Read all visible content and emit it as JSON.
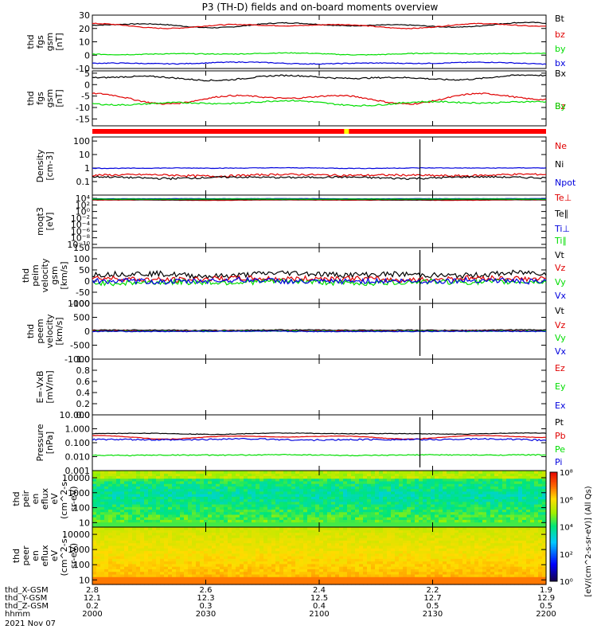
{
  "title": "P3 (TH-D) fields and on-board moments overview",
  "colors": {
    "black": "#000000",
    "red": "#e00000",
    "green": "#00dd00",
    "blue": "#0000dd",
    "yellow": "#ffff00",
    "status_red": "#ff0000"
  },
  "chart_data": [
    {
      "type": "line",
      "id": "fgs_gsm",
      "ylabel_lines": [
        "thd",
        "fgs",
        "gsm",
        "[nT]"
      ],
      "ylim": [
        -10,
        30
      ],
      "yticks": [
        -10,
        0,
        10,
        20,
        30
      ],
      "series": [
        {
          "name": "Bt",
          "color": "#000000",
          "base": 22.5,
          "amp": 2,
          "noise": 0.3
        },
        {
          "name": "bz",
          "color": "#e00000",
          "base": 22,
          "amp": 2,
          "noise": 0.3
        },
        {
          "name": "by",
          "color": "#00dd00",
          "base": 1,
          "amp": 0.8,
          "noise": 0.3
        },
        {
          "name": "bx",
          "color": "#0000dd",
          "base": -6,
          "amp": 0.8,
          "noise": 0.3
        }
      ]
    },
    {
      "type": "line",
      "id": "fgs_gsm2",
      "ylabel_lines": [
        "thd",
        "fgs",
        "gsm",
        "[nT]"
      ],
      "ylim": [
        -18,
        6
      ],
      "yticks": [
        -15,
        -10,
        -5,
        0,
        5
      ],
      "series": [
        {
          "name": "Bx",
          "color": "#000000",
          "base": 3,
          "amp": 1.2,
          "noise": 0.3
        },
        {
          "name": "Bz",
          "color": "#e00000",
          "base": -6,
          "amp": 2.5,
          "noise": 0.3
        },
        {
          "name": "By",
          "color": "#00dd00",
          "base": -8,
          "amp": 1.2,
          "noise": 0.3
        }
      ]
    },
    {
      "type": "line",
      "id": "density",
      "scale": "log",
      "ylabel_lines": [
        "Density",
        "[cm-3]"
      ],
      "ylim": [
        0.01,
        200
      ],
      "yticks": [
        0.1,
        1,
        10,
        100
      ],
      "ytick_labels": [
        "0.1",
        "1",
        "10",
        "100"
      ],
      "series": [
        {
          "name": "Ne",
          "color": "#e00000",
          "base": 0.3,
          "amp": 0.05,
          "noise": 0.05
        },
        {
          "name": "Ni",
          "color": "#000000",
          "base": 0.2,
          "amp": 0.03,
          "noise": 0.03
        },
        {
          "name": "Npot",
          "color": "#0000dd",
          "base": 1.0,
          "amp": 0.05,
          "noise": 0.05
        }
      ]
    },
    {
      "type": "line",
      "id": "temperature",
      "scale": "log",
      "ylabel_lines": [
        "moqt3",
        "[eV]"
      ],
      "ylim": [
        1e-11,
        100000.0
      ],
      "yticks": [
        1e-10,
        1e-08,
        1e-06,
        0.0001,
        0.01,
        1,
        100,
        10000
      ],
      "ytick_labels": [
        "10⁻¹⁰",
        "10⁻⁸",
        "10⁻⁶",
        "10⁻⁴",
        "10⁻²",
        "10⁰",
        "10²",
        "10⁴"
      ],
      "series": [
        {
          "name": "Te⊥",
          "color": "#e00000",
          "base": 3000,
          "amp": 500,
          "noise": 300
        },
        {
          "name": "Te∥",
          "color": "#000000",
          "base": 4000,
          "amp": 500,
          "noise": 300
        },
        {
          "name": "Ti⊥",
          "color": "#0000dd",
          "base": 8000,
          "amp": 500,
          "noise": 500
        },
        {
          "name": "Ti∥",
          "color": "#00dd00",
          "base": 6000,
          "amp": 500,
          "noise": 500
        }
      ]
    },
    {
      "type": "line",
      "id": "peim_velocity",
      "ylabel_lines": [
        "thd",
        "peim",
        "velocity",
        "gsm",
        "[km/s]"
      ],
      "ylim": [
        -100,
        150
      ],
      "yticks": [
        -100,
        -50,
        0,
        50,
        100,
        150
      ],
      "series": [
        {
          "name": "Vt",
          "color": "#000000",
          "base": 30,
          "amp": 8,
          "noise": 12
        },
        {
          "name": "Vz",
          "color": "#e00000",
          "base": 10,
          "amp": 5,
          "noise": 12
        },
        {
          "name": "Vy",
          "color": "#00dd00",
          "base": -5,
          "amp": 5,
          "noise": 12
        },
        {
          "name": "Vx",
          "color": "#0000dd",
          "base": 0,
          "amp": 5,
          "noise": 12
        }
      ]
    },
    {
      "type": "line",
      "id": "peem_velocity",
      "ylabel_lines": [
        "thd",
        "peem",
        "velocity",
        "[km/s]"
      ],
      "ylim": [
        -1000,
        1000
      ],
      "yticks": [
        -1000,
        -500,
        0,
        500,
        1000
      ],
      "series": [
        {
          "name": "Vt",
          "color": "#000000",
          "base": 40,
          "amp": 10,
          "noise": 15
        },
        {
          "name": "Vz",
          "color": "#e00000",
          "base": 10,
          "amp": 5,
          "noise": 15
        },
        {
          "name": "Vy",
          "color": "#00dd00",
          "base": 0,
          "amp": 5,
          "noise": 15
        },
        {
          "name": "Vx",
          "color": "#0000dd",
          "base": -5,
          "amp": 5,
          "noise": 15
        }
      ]
    },
    {
      "type": "line",
      "id": "efield",
      "ylabel_lines": [
        "E=-VxB",
        "[mV/m]"
      ],
      "ylim": [
        0,
        1
      ],
      "yticks": [
        0,
        0.2,
        0.4,
        0.6,
        0.8,
        1.0
      ],
      "ytick_labels": [
        "0.0",
        "0.2",
        "0.4",
        "0.6",
        "0.8",
        "1.0"
      ],
      "series": [
        {
          "name": "Ez",
          "color": "#e00000"
        },
        {
          "name": "Ey",
          "color": "#00dd00"
        },
        {
          "name": "Ex",
          "color": "#0000dd"
        }
      ]
    },
    {
      "type": "line",
      "id": "pressure",
      "scale": "log",
      "ylabel_lines": [
        "Pressure",
        "[nPa]"
      ],
      "ylim": [
        0.001,
        10
      ],
      "yticks": [
        0.001,
        0.01,
        0.1,
        1,
        10
      ],
      "ytick_labels": [
        "0.001",
        "0.010",
        "0.100",
        "1.000",
        "10.000"
      ],
      "series": [
        {
          "name": "Pt",
          "color": "#000000",
          "base": 0.45,
          "amp": 0.05,
          "noise": 0.02
        },
        {
          "name": "Pb",
          "color": "#e00000",
          "base": 0.26,
          "amp": 0.08,
          "noise": 0.01
        },
        {
          "name": "Pe",
          "color": "#00dd00",
          "base": 0.013,
          "amp": 0.001,
          "noise": 0.001
        },
        {
          "name": "Pi",
          "color": "#0000dd",
          "base": 0.17,
          "amp": 0.02,
          "noise": 0.02
        }
      ]
    },
    {
      "type": "heatmap",
      "id": "peir_eflux",
      "ylabel_lines": [
        "thd",
        "peir",
        "en",
        "eflux",
        "eV",
        "(cm^2-s-",
        "sr-eV)"
      ],
      "ylim": [
        5,
        30000
      ],
      "yticks": [
        10,
        100,
        1000,
        10000
      ],
      "ytick_labels": [
        "10",
        "100",
        "1000",
        "10000"
      ],
      "zlim": [
        1,
        100000000.0
      ]
    },
    {
      "type": "heatmap",
      "id": "peer_eflux",
      "ylabel_lines": [
        "thd",
        "peer",
        "en",
        "eflux",
        "eV",
        "(cm^2-s-",
        "sr-eV)"
      ],
      "ylim": [
        5,
        30000
      ],
      "yticks": [
        10,
        100,
        1000,
        10000
      ],
      "ytick_labels": [
        "10",
        "100",
        "1000",
        "10000"
      ],
      "zlim": [
        1,
        100000000.0
      ]
    }
  ],
  "colorbar": {
    "label": "[eV/(cm^2-s-sr-eV)] (All Qs)",
    "ticks": [
      "10⁰",
      "10²",
      "10⁴",
      "10⁶",
      "10⁸"
    ]
  },
  "x_axis": {
    "row_labels": [
      "thd_X-GSM",
      "thd_Y-GSM",
      "thd_Z-GSM",
      "hhmm",
      "2021 Nov 07"
    ],
    "ticks": [
      {
        "x": 2.8,
        "y": 12.1,
        "z": 0.2,
        "hhmm": "2000"
      },
      {
        "x": 2.6,
        "y": 12.3,
        "z": 0.3,
        "hhmm": "2030"
      },
      {
        "x": 2.4,
        "y": 12.5,
        "z": 0.4,
        "hhmm": "2100"
      },
      {
        "x": 2.2,
        "y": 12.7,
        "z": 0.5,
        "hhmm": "2130"
      },
      {
        "x": 1.9,
        "y": 12.9,
        "z": 0.5,
        "hhmm": "2200"
      }
    ]
  }
}
